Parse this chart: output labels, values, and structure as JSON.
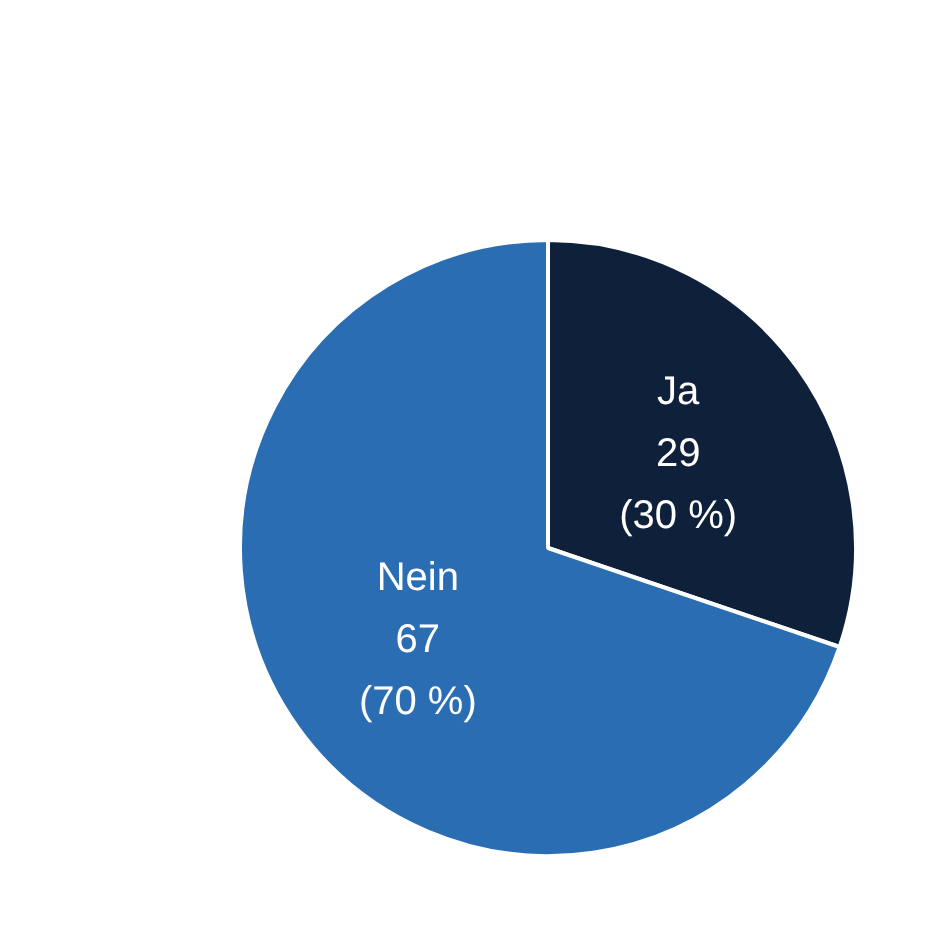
{
  "chart_data": {
    "type": "pie",
    "categories": [
      "Ja",
      "Nein"
    ],
    "values": [
      29,
      67
    ],
    "colors": [
      "#0f203b",
      "#2a6db3"
    ],
    "value_labels": [
      "29\n(30 %)",
      "67\n(70 %)"
    ],
    "legend": false
  }
}
